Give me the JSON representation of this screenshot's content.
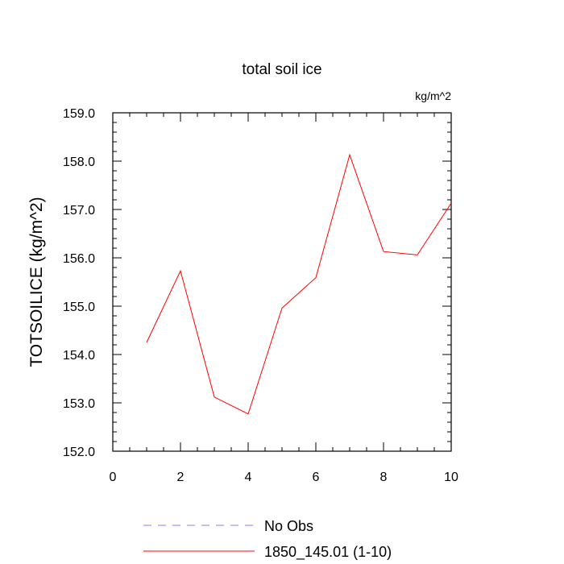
{
  "chart_data": {
    "type": "line",
    "title": "total soil ice",
    "units": "kg/m^2",
    "ylabel": "TOTSOILICE  (kg/m^2)",
    "xlabel": "",
    "xlim": [
      0,
      10
    ],
    "ylim": [
      152.0,
      159.0
    ],
    "x_ticks": [
      0,
      2,
      4,
      6,
      8,
      10
    ],
    "x_tick_labels": [
      "0",
      "2",
      "4",
      "6",
      "8",
      "10"
    ],
    "y_ticks": [
      152,
      153,
      154,
      155,
      156,
      157,
      158,
      159
    ],
    "y_tick_labels": [
      "152.0",
      "153.0",
      "154.0",
      "155.0",
      "156.0",
      "157.0",
      "158.0",
      "159.0"
    ],
    "grid": false,
    "legend_position": "bottom",
    "series": [
      {
        "name": "1850_145.01 (1-10)",
        "color": "#ff0000",
        "dash": "solid",
        "x": [
          1,
          2,
          3,
          4,
          5,
          6,
          7,
          8,
          9,
          10
        ],
        "y": [
          154.25,
          155.73,
          153.12,
          152.77,
          154.96,
          155.59,
          158.13,
          156.13,
          156.06,
          157.13
        ]
      }
    ],
    "legend": [
      {
        "label": "No Obs",
        "color": "#8080ff",
        "dash": "dashed"
      },
      {
        "label": "1850_145.01 (1-10)",
        "color": "#ff0000",
        "dash": "solid"
      }
    ]
  }
}
